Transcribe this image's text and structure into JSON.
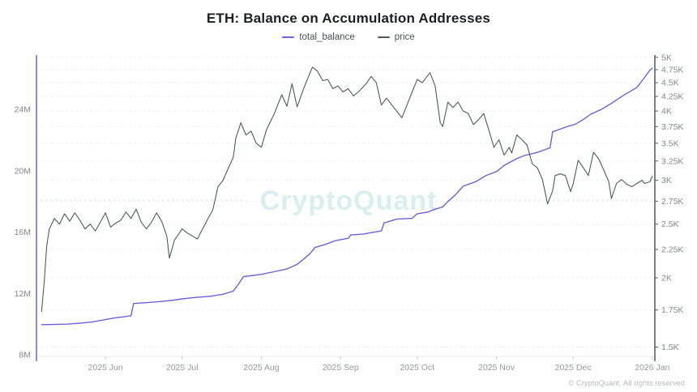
{
  "header": {
    "title": "ETH: Balance on Accumulation Addresses"
  },
  "legend": {
    "items": [
      {
        "label": "total_balance",
        "color": "#6e62d9"
      },
      {
        "label": "price",
        "color": "#4b5f58"
      }
    ]
  },
  "watermark": {
    "text": "CryptoQuant",
    "color": "#d9efee"
  },
  "footer": {
    "copyright": "© CryptoQuant. All rights reserved"
  },
  "chart_data": {
    "type": "line",
    "title": "ETH: Balance on Accumulation Addresses",
    "grid": "horizontal-dashed",
    "legend_position": "top-center",
    "x_domain": [
      "2025-05-05",
      "2026-01-02"
    ],
    "x_ticks": [
      {
        "date": "2025-06-01",
        "label": "2025 Jun"
      },
      {
        "date": "2025-07-01",
        "label": "2025 Jul"
      },
      {
        "date": "2025-08-01",
        "label": "2025 Aug"
      },
      {
        "date": "2025-09-01",
        "label": "2025 Sep"
      },
      {
        "date": "2025-10-01",
        "label": "2025 Oct"
      },
      {
        "date": "2025-11-01",
        "label": "2025 Nov"
      },
      {
        "date": "2025-12-01",
        "label": "2025 Dec"
      },
      {
        "date": "2026-01-01",
        "label": "2026 Jan"
      }
    ],
    "left_axis": {
      "scale": "linear",
      "unit": "M (million ETH)",
      "min": 7.9,
      "max": 27.55,
      "ticks": [
        {
          "value": 8,
          "label": "8M"
        },
        {
          "value": 12,
          "label": "12M"
        },
        {
          "value": 16,
          "label": "16M"
        },
        {
          "value": 20,
          "label": "20M"
        },
        {
          "value": 24,
          "label": "24M"
        }
      ]
    },
    "right_axis": {
      "scale": "log",
      "unit": "USD",
      "min": 1443,
      "max": 5047,
      "ticks": [
        {
          "value": 5000,
          "label": "5K"
        },
        {
          "value": 4750,
          "label": "4.75K"
        },
        {
          "value": 4500,
          "label": "4.5K"
        },
        {
          "value": 4250,
          "label": "4.25K"
        },
        {
          "value": 4000,
          "label": "4K"
        },
        {
          "value": 3750,
          "label": "3.75K"
        },
        {
          "value": 3500,
          "label": "3.5K"
        },
        {
          "value": 3250,
          "label": "3.25K"
        },
        {
          "value": 3000,
          "label": "3K"
        },
        {
          "value": 2750,
          "label": "2.75K"
        },
        {
          "value": 2500,
          "label": "2.5K"
        },
        {
          "value": 2250,
          "label": "2.25K"
        },
        {
          "value": 2000,
          "label": "2K"
        },
        {
          "value": 1750,
          "label": "1.75K"
        },
        {
          "value": 1500,
          "label": "1.5K"
        }
      ]
    },
    "series": [
      {
        "name": "total_balance",
        "axis": "left",
        "color": "#6e62d9",
        "width": 1.4,
        "unit": "million ETH",
        "points": [
          [
            "2025-05-07",
            9.97
          ],
          [
            "2025-05-12",
            9.98
          ],
          [
            "2025-05-17",
            10.0
          ],
          [
            "2025-05-22",
            10.06
          ],
          [
            "2025-05-27",
            10.15
          ],
          [
            "2025-06-01",
            10.3
          ],
          [
            "2025-06-05",
            10.42
          ],
          [
            "2025-06-09",
            10.5
          ],
          [
            "2025-06-11",
            10.55
          ],
          [
            "2025-06-12",
            11.35
          ],
          [
            "2025-06-17",
            11.4
          ],
          [
            "2025-06-23",
            11.48
          ],
          [
            "2025-06-28",
            11.57
          ],
          [
            "2025-07-01",
            11.65
          ],
          [
            "2025-07-06",
            11.74
          ],
          [
            "2025-07-12",
            11.82
          ],
          [
            "2025-07-17",
            11.95
          ],
          [
            "2025-07-21",
            12.15
          ],
          [
            "2025-07-23",
            12.6
          ],
          [
            "2025-07-25",
            13.1
          ],
          [
            "2025-07-29",
            13.18
          ],
          [
            "2025-08-01",
            13.25
          ],
          [
            "2025-08-06",
            13.42
          ],
          [
            "2025-08-11",
            13.6
          ],
          [
            "2025-08-15",
            13.9
          ],
          [
            "2025-08-18",
            14.3
          ],
          [
            "2025-08-20",
            14.6
          ],
          [
            "2025-08-22",
            15.0
          ],
          [
            "2025-08-26",
            15.2
          ],
          [
            "2025-08-30",
            15.45
          ],
          [
            "2025-09-04",
            15.6
          ],
          [
            "2025-09-05",
            15.82
          ],
          [
            "2025-09-10",
            15.88
          ],
          [
            "2025-09-14",
            16.0
          ],
          [
            "2025-09-17",
            16.08
          ],
          [
            "2025-09-18",
            16.6
          ],
          [
            "2025-09-23",
            16.85
          ],
          [
            "2025-09-29",
            16.9
          ],
          [
            "2025-10-01",
            17.2
          ],
          [
            "2025-10-05",
            17.3
          ],
          [
            "2025-10-08",
            17.5
          ],
          [
            "2025-10-11",
            17.65
          ],
          [
            "2025-10-13",
            18.0
          ],
          [
            "2025-10-16",
            18.45
          ],
          [
            "2025-10-19",
            19.0
          ],
          [
            "2025-10-24",
            19.3
          ],
          [
            "2025-10-28",
            19.7
          ],
          [
            "2025-11-01",
            19.95
          ],
          [
            "2025-11-04",
            20.35
          ],
          [
            "2025-11-09",
            20.8
          ],
          [
            "2025-11-12",
            21.0
          ],
          [
            "2025-11-17",
            21.2
          ],
          [
            "2025-11-22",
            21.5
          ],
          [
            "2025-11-23",
            22.55
          ],
          [
            "2025-11-29",
            22.9
          ],
          [
            "2025-12-02",
            23.05
          ],
          [
            "2025-12-05",
            23.35
          ],
          [
            "2025-12-08",
            23.7
          ],
          [
            "2025-12-12",
            24.0
          ],
          [
            "2025-12-16",
            24.4
          ],
          [
            "2025-12-21",
            24.95
          ],
          [
            "2025-12-26",
            25.45
          ],
          [
            "2025-12-29",
            26.1
          ],
          [
            "2025-12-31",
            26.55
          ],
          [
            "2026-01-01",
            26.7
          ]
        ]
      },
      {
        "name": "price",
        "axis": "right",
        "color": "#4b5f58",
        "width": 1.1,
        "unit": "USD",
        "points": [
          [
            "2025-05-07",
            1740
          ],
          [
            "2025-05-08",
            1960
          ],
          [
            "2025-05-09",
            2280
          ],
          [
            "2025-05-10",
            2450
          ],
          [
            "2025-05-12",
            2560
          ],
          [
            "2025-05-14",
            2500
          ],
          [
            "2025-05-16",
            2610
          ],
          [
            "2025-05-18",
            2530
          ],
          [
            "2025-05-20",
            2620
          ],
          [
            "2025-05-22",
            2540
          ],
          [
            "2025-05-24",
            2450
          ],
          [
            "2025-05-26",
            2500
          ],
          [
            "2025-05-28",
            2430
          ],
          [
            "2025-05-30",
            2520
          ],
          [
            "2025-06-01",
            2620
          ],
          [
            "2025-06-03",
            2470
          ],
          [
            "2025-06-05",
            2510
          ],
          [
            "2025-06-07",
            2540
          ],
          [
            "2025-06-09",
            2630
          ],
          [
            "2025-06-11",
            2560
          ],
          [
            "2025-06-13",
            2660
          ],
          [
            "2025-06-15",
            2520
          ],
          [
            "2025-06-17",
            2450
          ],
          [
            "2025-06-19",
            2520
          ],
          [
            "2025-06-21",
            2620
          ],
          [
            "2025-06-23",
            2530
          ],
          [
            "2025-06-25",
            2380
          ],
          [
            "2025-06-26",
            2170
          ],
          [
            "2025-06-28",
            2340
          ],
          [
            "2025-07-01",
            2450
          ],
          [
            "2025-07-03",
            2410
          ],
          [
            "2025-07-05",
            2380
          ],
          [
            "2025-07-07",
            2350
          ],
          [
            "2025-07-09",
            2450
          ],
          [
            "2025-07-11",
            2550
          ],
          [
            "2025-07-13",
            2650
          ],
          [
            "2025-07-15",
            2920
          ],
          [
            "2025-07-17",
            3000
          ],
          [
            "2025-07-19",
            3150
          ],
          [
            "2025-07-21",
            3300
          ],
          [
            "2025-07-22",
            3570
          ],
          [
            "2025-07-24",
            3810
          ],
          [
            "2025-07-26",
            3620
          ],
          [
            "2025-07-28",
            3680
          ],
          [
            "2025-07-30",
            3500
          ],
          [
            "2025-08-01",
            3440
          ],
          [
            "2025-08-03",
            3700
          ],
          [
            "2025-08-06",
            3950
          ],
          [
            "2025-08-09",
            4280
          ],
          [
            "2025-08-11",
            4080
          ],
          [
            "2025-08-13",
            4480
          ],
          [
            "2025-08-15",
            4070
          ],
          [
            "2025-08-18",
            4450
          ],
          [
            "2025-08-21",
            4800
          ],
          [
            "2025-08-23",
            4720
          ],
          [
            "2025-08-25",
            4540
          ],
          [
            "2025-08-27",
            4560
          ],
          [
            "2025-08-29",
            4390
          ],
          [
            "2025-08-31",
            4440
          ],
          [
            "2025-09-02",
            4330
          ],
          [
            "2025-09-04",
            4390
          ],
          [
            "2025-09-06",
            4260
          ],
          [
            "2025-09-08",
            4330
          ],
          [
            "2025-09-11",
            4480
          ],
          [
            "2025-09-13",
            4620
          ],
          [
            "2025-09-15",
            4500
          ],
          [
            "2025-09-17",
            4100
          ],
          [
            "2025-09-19",
            4220
          ],
          [
            "2025-09-22",
            4050
          ],
          [
            "2025-09-25",
            3890
          ],
          [
            "2025-09-27",
            4100
          ],
          [
            "2025-09-29",
            4330
          ],
          [
            "2025-10-01",
            4560
          ],
          [
            "2025-10-03",
            4500
          ],
          [
            "2025-10-06",
            4690
          ],
          [
            "2025-10-08",
            4440
          ],
          [
            "2025-10-10",
            3810
          ],
          [
            "2025-10-11",
            3750
          ],
          [
            "2025-10-13",
            4150
          ],
          [
            "2025-10-15",
            4060
          ],
          [
            "2025-10-17",
            4150
          ],
          [
            "2025-10-19",
            4000
          ],
          [
            "2025-10-21",
            3960
          ],
          [
            "2025-10-23",
            3780
          ],
          [
            "2025-10-25",
            3860
          ],
          [
            "2025-10-27",
            3960
          ],
          [
            "2025-10-29",
            3700
          ],
          [
            "2025-10-31",
            3440
          ],
          [
            "2025-11-02",
            3550
          ],
          [
            "2025-11-04",
            3330
          ],
          [
            "2025-11-06",
            3440
          ],
          [
            "2025-11-07",
            3360
          ],
          [
            "2025-11-09",
            3620
          ],
          [
            "2025-11-11",
            3550
          ],
          [
            "2025-11-13",
            3470
          ],
          [
            "2025-11-15",
            3210
          ],
          [
            "2025-11-17",
            3160
          ],
          [
            "2025-11-19",
            3010
          ],
          [
            "2025-11-21",
            2720
          ],
          [
            "2025-11-23",
            2870
          ],
          [
            "2025-11-24",
            3060
          ],
          [
            "2025-11-26",
            3080
          ],
          [
            "2025-11-28",
            3060
          ],
          [
            "2025-11-30",
            2860
          ],
          [
            "2025-12-01",
            2950
          ],
          [
            "2025-12-03",
            3260
          ],
          [
            "2025-12-05",
            3160
          ],
          [
            "2025-12-07",
            3060
          ],
          [
            "2025-12-09",
            3370
          ],
          [
            "2025-12-11",
            3280
          ],
          [
            "2025-12-13",
            3130
          ],
          [
            "2025-12-15",
            2980
          ],
          [
            "2025-12-16",
            2780
          ],
          [
            "2025-12-18",
            2960
          ],
          [
            "2025-12-20",
            3010
          ],
          [
            "2025-12-22",
            2950
          ],
          [
            "2025-12-24",
            2920
          ],
          [
            "2025-12-26",
            2960
          ],
          [
            "2025-12-28",
            3000
          ],
          [
            "2025-12-29",
            2960
          ],
          [
            "2025-12-31",
            2980
          ],
          [
            "2026-01-01",
            3050
          ]
        ]
      }
    ]
  }
}
